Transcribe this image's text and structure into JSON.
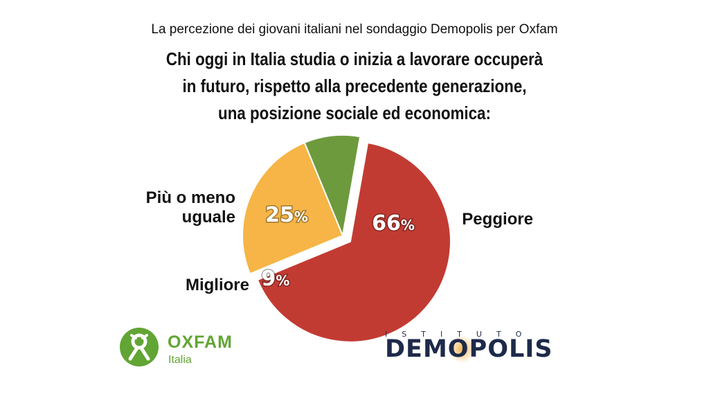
{
  "header": {
    "subtitle": "La percezione dei giovani italiani nel sondaggio Demopolis per Oxfam",
    "title_lines": [
      "Chi oggi in Italia studia o inizia a lavorare occuperà",
      "in futuro, rispetto alla precedente generazione,",
      "una posizione sociale ed economica:"
    ]
  },
  "chart_data": {
    "type": "pie",
    "title": "Chi oggi in Italia studia o inizia a lavorare occuperà in futuro, rispetto alla precedente generazione, una posizione sociale ed economica:",
    "slices": [
      {
        "label": "Peggiore",
        "value": 66,
        "display": "66",
        "color": "#c23b32",
        "exploded": true
      },
      {
        "label": "Più o meno uguale",
        "value": 25,
        "display": "25",
        "color": "#f6b546",
        "exploded": false
      },
      {
        "label": "Migliore",
        "value": 9,
        "display": "9",
        "color": "#6e9a3e",
        "exploded": false
      }
    ],
    "value_suffix": "%",
    "label_lines": [
      [
        "Peggiore"
      ],
      [
        "Più o meno",
        "uguale"
      ],
      [
        "Migliore"
      ]
    ]
  },
  "logos": {
    "oxfam": {
      "name": "OXFAM",
      "sub": "Italia",
      "color": "#61a534",
      "icon": "oxfam-person-icon"
    },
    "demopolis": {
      "top": "ISTITUTO",
      "name": "DEMOPOLIS",
      "color": "#1e2a4a",
      "accent": "#f3b34a"
    }
  }
}
